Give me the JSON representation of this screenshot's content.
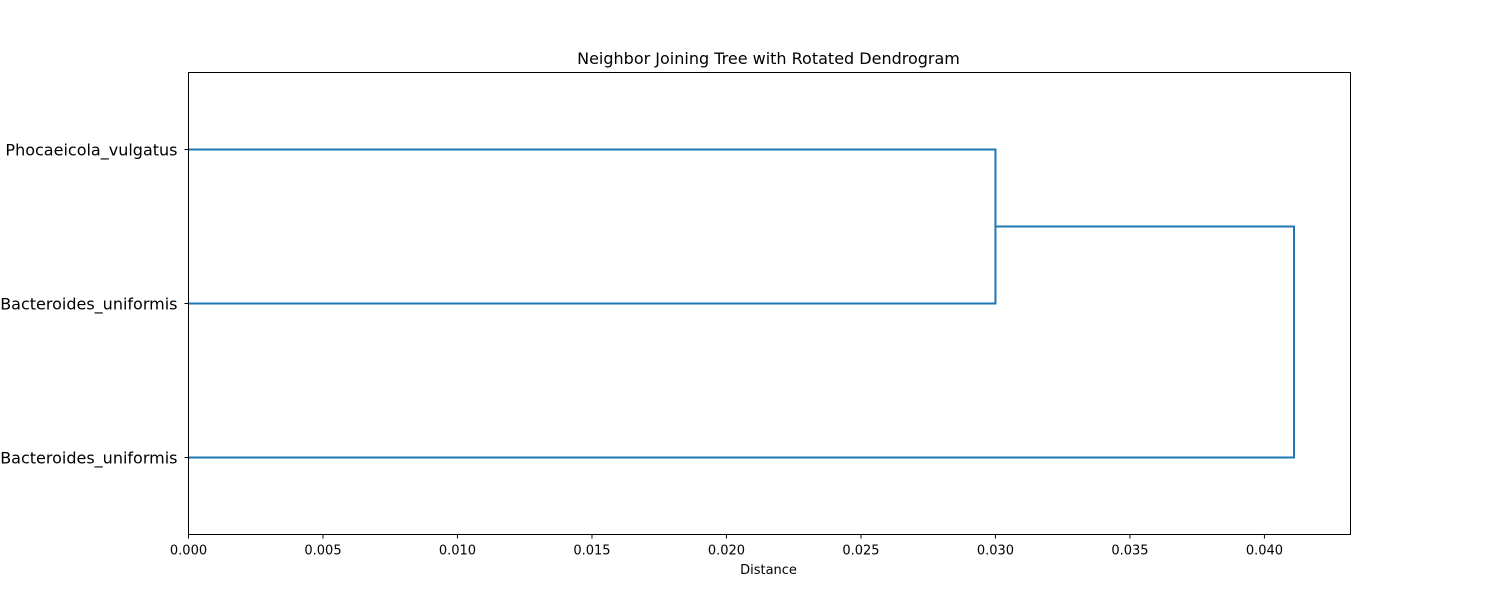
{
  "chart_data": {
    "type": "dendrogram",
    "orientation": "horizontal",
    "title": "Neighbor Joining Tree with Rotated Dendrogram",
    "xlabel": "Distance",
    "ylabel": "",
    "xlim": [
      0,
      0.0432
    ],
    "xticks": [
      {
        "value": 0.0,
        "label": "0.000"
      },
      {
        "value": 0.005,
        "label": "0.005"
      },
      {
        "value": 0.01,
        "label": "0.010"
      },
      {
        "value": 0.015,
        "label": "0.015"
      },
      {
        "value": 0.02,
        "label": "0.020"
      },
      {
        "value": 0.025,
        "label": "0.025"
      },
      {
        "value": 0.03,
        "label": "0.030"
      },
      {
        "value": 0.035,
        "label": "0.035"
      },
      {
        "value": 0.04,
        "label": "0.040"
      }
    ],
    "leaves": [
      "Phocaeicola_vulgatus",
      "Bacteroides_uniformis",
      "Bacteroides_uniformis"
    ],
    "merges": [
      {
        "left": 0,
        "right": 1,
        "distance": 0.03
      },
      {
        "left": "merge-0",
        "right": 2,
        "distance": 0.0411
      }
    ],
    "grid": false,
    "legend": "none",
    "branch_color": "#1f77b4"
  }
}
